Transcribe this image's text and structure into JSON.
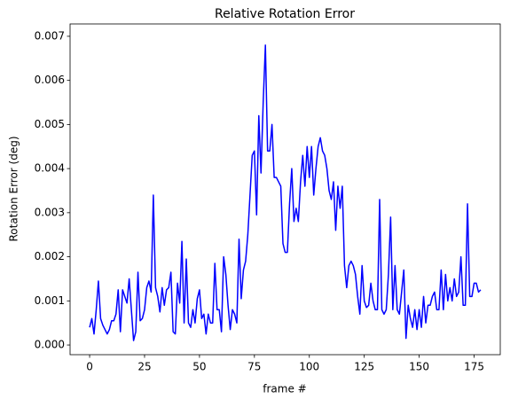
{
  "chart_data": {
    "type": "line",
    "title": "Relative Rotation Error",
    "xlabel": "frame #",
    "ylabel": "Rotation Error (deg)",
    "x": [
      0,
      1,
      2,
      3,
      4,
      5,
      6,
      7,
      8,
      9,
      10,
      11,
      12,
      13,
      14,
      15,
      16,
      17,
      18,
      19,
      20,
      21,
      22,
      23,
      24,
      25,
      26,
      27,
      28,
      29,
      30,
      31,
      32,
      33,
      34,
      35,
      36,
      37,
      38,
      39,
      40,
      41,
      42,
      43,
      44,
      45,
      46,
      47,
      48,
      49,
      50,
      51,
      52,
      53,
      54,
      55,
      56,
      57,
      58,
      59,
      60,
      61,
      62,
      63,
      64,
      65,
      66,
      67,
      68,
      69,
      70,
      71,
      72,
      73,
      74,
      75,
      76,
      77,
      78,
      79,
      80,
      81,
      82,
      83,
      84,
      85,
      86,
      87,
      88,
      89,
      90,
      91,
      92,
      93,
      94,
      95,
      96,
      97,
      98,
      99,
      100,
      101,
      102,
      103,
      104,
      105,
      106,
      107,
      108,
      109,
      110,
      111,
      112,
      113,
      114,
      115,
      116,
      117,
      118,
      119,
      120,
      121,
      122,
      123,
      124,
      125,
      126,
      127,
      128,
      129,
      130,
      131,
      132,
      133,
      134,
      135,
      136,
      137,
      138,
      139,
      140,
      141,
      142,
      143,
      144,
      145,
      146,
      147,
      148,
      149,
      150,
      151,
      152,
      153,
      154,
      155,
      156,
      157,
      158,
      159,
      160,
      161,
      162,
      163,
      164,
      165,
      166,
      167,
      168,
      169,
      170,
      171,
      172,
      173,
      174,
      175,
      176,
      177,
      178
    ],
    "series": [
      {
        "name": "rotation error",
        "color": "#0000ff",
        "values": [
          0.0004,
          0.0006,
          0.00025,
          0.0008,
          0.00145,
          0.0006,
          0.00045,
          0.00035,
          0.00025,
          0.00035,
          0.00055,
          0.00055,
          0.0007,
          0.00125,
          0.0003,
          0.00125,
          0.0011,
          0.00095,
          0.0015,
          0.0008,
          0.0001,
          0.0003,
          0.00165,
          0.00055,
          0.0006,
          0.0008,
          0.0013,
          0.00145,
          0.0012,
          0.0034,
          0.0013,
          0.0011,
          0.00075,
          0.0013,
          0.0009,
          0.00125,
          0.0013,
          0.00165,
          0.0003,
          0.00025,
          0.0014,
          0.00095,
          0.00235,
          0.0005,
          0.00195,
          0.0005,
          0.0004,
          0.0008,
          0.0005,
          0.00105,
          0.00125,
          0.0006,
          0.0007,
          0.00025,
          0.0007,
          0.0005,
          0.0005,
          0.00185,
          0.0008,
          0.0008,
          0.0003,
          0.002,
          0.0016,
          0.0009,
          0.00035,
          0.0008,
          0.0007,
          0.0005,
          0.0024,
          0.00105,
          0.0017,
          0.0019,
          0.0025,
          0.0034,
          0.0043,
          0.0044,
          0.00295,
          0.0052,
          0.0039,
          0.0055,
          0.0068,
          0.0044,
          0.0044,
          0.005,
          0.0038,
          0.0038,
          0.0037,
          0.0036,
          0.0023,
          0.0021,
          0.0021,
          0.0032,
          0.004,
          0.0028,
          0.0031,
          0.0028,
          0.0037,
          0.0043,
          0.0036,
          0.0045,
          0.0038,
          0.0045,
          0.0034,
          0.004,
          0.0045,
          0.0047,
          0.0044,
          0.0043,
          0.004,
          0.0035,
          0.0033,
          0.0037,
          0.0026,
          0.0036,
          0.0031,
          0.0036,
          0.0018,
          0.0013,
          0.0018,
          0.0019,
          0.0018,
          0.0016,
          0.0011,
          0.0007,
          0.0018,
          0.001,
          0.00085,
          0.0009,
          0.0014,
          0.001,
          0.0008,
          0.0008,
          0.0033,
          0.0008,
          0.0007,
          0.0008,
          0.0016,
          0.0029,
          0.0008,
          0.0018,
          0.0008,
          0.0007,
          0.0012,
          0.0017,
          0.00015,
          0.0009,
          0.0006,
          0.0004,
          0.0008,
          0.00035,
          0.0008,
          0.0004,
          0.0011,
          0.0005,
          0.0009,
          0.0009,
          0.0011,
          0.0012,
          0.0008,
          0.0008,
          0.0017,
          0.0008,
          0.0016,
          0.001,
          0.0013,
          0.001,
          0.0015,
          0.0011,
          0.0012,
          0.002,
          0.0009,
          0.0009,
          0.0032,
          0.0011,
          0.0011,
          0.0014,
          0.0014,
          0.0012,
          0.00125
        ]
      }
    ],
    "xlim": [
      -8.9,
      186.9
    ],
    "xticks": [
      0,
      25,
      50,
      75,
      100,
      125,
      150,
      175
    ],
    "ylim": [
      -0.00022,
      0.00728
    ],
    "yticks": [
      {
        "value": 0,
        "label": "0.000"
      },
      {
        "value": 0.001,
        "label": "0.001"
      },
      {
        "value": 0.002,
        "label": "0.002"
      },
      {
        "value": 0.003,
        "label": "0.003"
      },
      {
        "value": 0.004,
        "label": "0.004"
      },
      {
        "value": 0.005,
        "label": "0.005"
      },
      {
        "value": 0.006,
        "label": "0.006"
      },
      {
        "value": 0.007,
        "label": "0.007"
      }
    ],
    "grid": false
  }
}
